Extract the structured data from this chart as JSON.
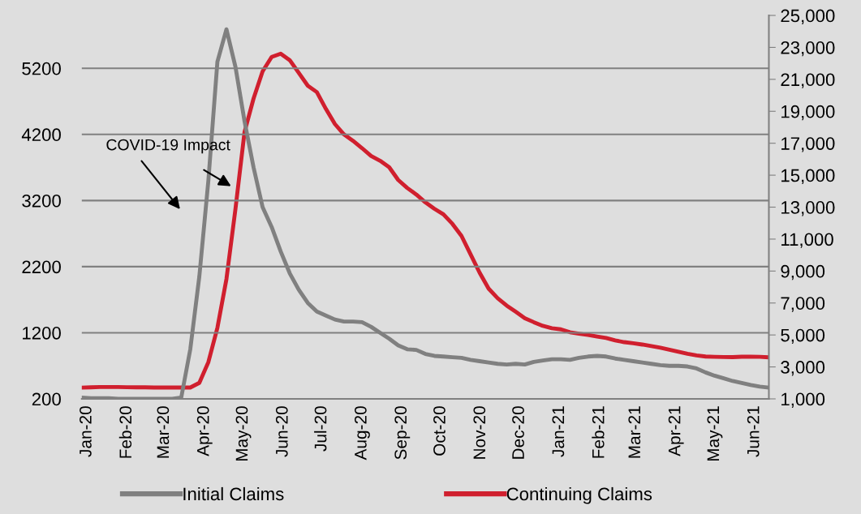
{
  "chart_data": {
    "type": "line",
    "x": [
      "2019-12-28",
      "2020-01-04",
      "2020-01-11",
      "2020-01-18",
      "2020-01-25",
      "2020-02-01",
      "2020-02-08",
      "2020-02-15",
      "2020-02-22",
      "2020-02-29",
      "2020-03-07",
      "2020-03-14",
      "2020-03-21",
      "2020-03-28",
      "2020-04-04",
      "2020-04-11",
      "2020-04-18",
      "2020-04-25",
      "2020-05-02",
      "2020-05-09",
      "2020-05-16",
      "2020-05-23",
      "2020-05-30",
      "2020-06-06",
      "2020-06-13",
      "2020-06-20",
      "2020-06-27",
      "2020-07-04",
      "2020-07-11",
      "2020-07-18",
      "2020-07-25",
      "2020-08-01",
      "2020-08-08",
      "2020-08-15",
      "2020-08-22",
      "2020-08-29",
      "2020-09-05",
      "2020-09-12",
      "2020-09-19",
      "2020-09-26",
      "2020-10-03",
      "2020-10-10",
      "2020-10-17",
      "2020-10-24",
      "2020-10-31",
      "2020-11-07",
      "2020-11-14",
      "2020-11-21",
      "2020-11-28",
      "2020-12-05",
      "2020-12-12",
      "2020-12-19",
      "2020-12-26",
      "2021-01-02",
      "2021-01-09",
      "2021-01-16",
      "2021-01-23",
      "2021-01-30",
      "2021-02-06",
      "2021-02-13",
      "2021-02-20",
      "2021-02-27",
      "2021-03-06",
      "2021-03-13",
      "2021-03-20",
      "2021-03-27",
      "2021-04-03",
      "2021-04-10",
      "2021-04-17",
      "2021-04-24",
      "2021-05-01",
      "2021-05-08",
      "2021-05-15",
      "2021-05-22",
      "2021-05-29",
      "2021-06-05",
      "2021-06-12"
    ],
    "series": [
      {
        "name": "Initial Claims",
        "color": "#808080",
        "values": [
          220,
          210,
          210,
          210,
          200,
          200,
          200,
          200,
          200,
          200,
          200,
          220,
          950,
          2050,
          3500,
          5300,
          5790,
          5220,
          4400,
          3700,
          3100,
          2800,
          2430,
          2100,
          1850,
          1650,
          1520,
          1460,
          1400,
          1370,
          1370,
          1360,
          1290,
          1200,
          1110,
          1010,
          950,
          940,
          880,
          850,
          840,
          830,
          820,
          790,
          770,
          750,
          730,
          720,
          730,
          720,
          760,
          780,
          800,
          800,
          790,
          820,
          840,
          850,
          840,
          810,
          790,
          770,
          750,
          730,
          710,
          700,
          700,
          690,
          660,
          600,
          550,
          510,
          470,
          440,
          410,
          385,
          370
        ]
      },
      {
        "name": "Continuing Claims",
        "color": "#d01f2e",
        "axis": "y2",
        "values": [
          1700,
          1720,
          1740,
          1740,
          1740,
          1730,
          1720,
          1720,
          1710,
          1710,
          1710,
          1710,
          1710,
          2000,
          3300,
          5450,
          8500,
          12900,
          17700,
          19800,
          21500,
          22400,
          22600,
          22200,
          21400,
          20600,
          20200,
          19150,
          18200,
          17550,
          17150,
          16690,
          16200,
          15900,
          15500,
          14700,
          14200,
          13790,
          13300,
          12900,
          12550,
          11950,
          11200,
          10050,
          8900,
          7900,
          7300,
          6840,
          6450,
          6050,
          5800,
          5570,
          5420,
          5350,
          5170,
          5080,
          5000,
          4900,
          4810,
          4660,
          4550,
          4480,
          4400,
          4300,
          4200,
          4080,
          3950,
          3820,
          3720,
          3650,
          3630,
          3620,
          3610,
          3640,
          3640,
          3630,
          3600
        ]
      }
    ],
    "xlim": [
      "2019-12-28",
      "2021-06-12"
    ],
    "xticks": [
      {
        "value": "2020-01-01",
        "label": "Jan-20"
      },
      {
        "value": "2020-02-01",
        "label": "Feb-20"
      },
      {
        "value": "2020-03-01",
        "label": "Mar-20"
      },
      {
        "value": "2020-04-01",
        "label": "Apr-20"
      },
      {
        "value": "2020-05-01",
        "label": "May-20"
      },
      {
        "value": "2020-06-01",
        "label": "Jun-20"
      },
      {
        "value": "2020-07-01",
        "label": "Jul-20"
      },
      {
        "value": "2020-08-01",
        "label": "Aug-20"
      },
      {
        "value": "2020-09-01",
        "label": "Sep-20"
      },
      {
        "value": "2020-10-01",
        "label": "Oct-20"
      },
      {
        "value": "2020-11-01",
        "label": "Nov-20"
      },
      {
        "value": "2020-12-01",
        "label": "Dec-20"
      },
      {
        "value": "2021-01-01",
        "label": "Jan-21"
      },
      {
        "value": "2021-02-01",
        "label": "Feb-21"
      },
      {
        "value": "2021-03-01",
        "label": "Mar-21"
      },
      {
        "value": "2021-04-01",
        "label": "Apr-21"
      },
      {
        "value": "2021-05-01",
        "label": "May-21"
      },
      {
        "value": "2021-06-01",
        "label": "Jun-21"
      }
    ],
    "ylim": [
      200,
      6000
    ],
    "yticks": [
      200,
      1200,
      2200,
      3200,
      4200,
      5200
    ],
    "y2lim": [
      1000,
      25000
    ],
    "y2ticks": [
      {
        "value": 1000,
        "label": "1,000"
      },
      {
        "value": 3000,
        "label": "3,000"
      },
      {
        "value": 5000,
        "label": "5,000"
      },
      {
        "value": 7000,
        "label": "7,000"
      },
      {
        "value": 9000,
        "label": "9,000"
      },
      {
        "value": 11000,
        "label": "11,000"
      },
      {
        "value": 13000,
        "label": "13,000"
      },
      {
        "value": 15000,
        "label": "15,000"
      },
      {
        "value": 17000,
        "label": "17,000"
      },
      {
        "value": 19000,
        "label": "19,000"
      },
      {
        "value": 21000,
        "label": "21,000"
      },
      {
        "value": 23000,
        "label": "23,000"
      },
      {
        "value": 25000,
        "label": "25,000"
      }
    ],
    "annotations": [
      {
        "text": "COVID-19 Impact",
        "x": "2020-04-23",
        "y": 3400
      }
    ],
    "grid": "y",
    "legend": "bottom",
    "marker": "none",
    "line_style": "solid"
  }
}
